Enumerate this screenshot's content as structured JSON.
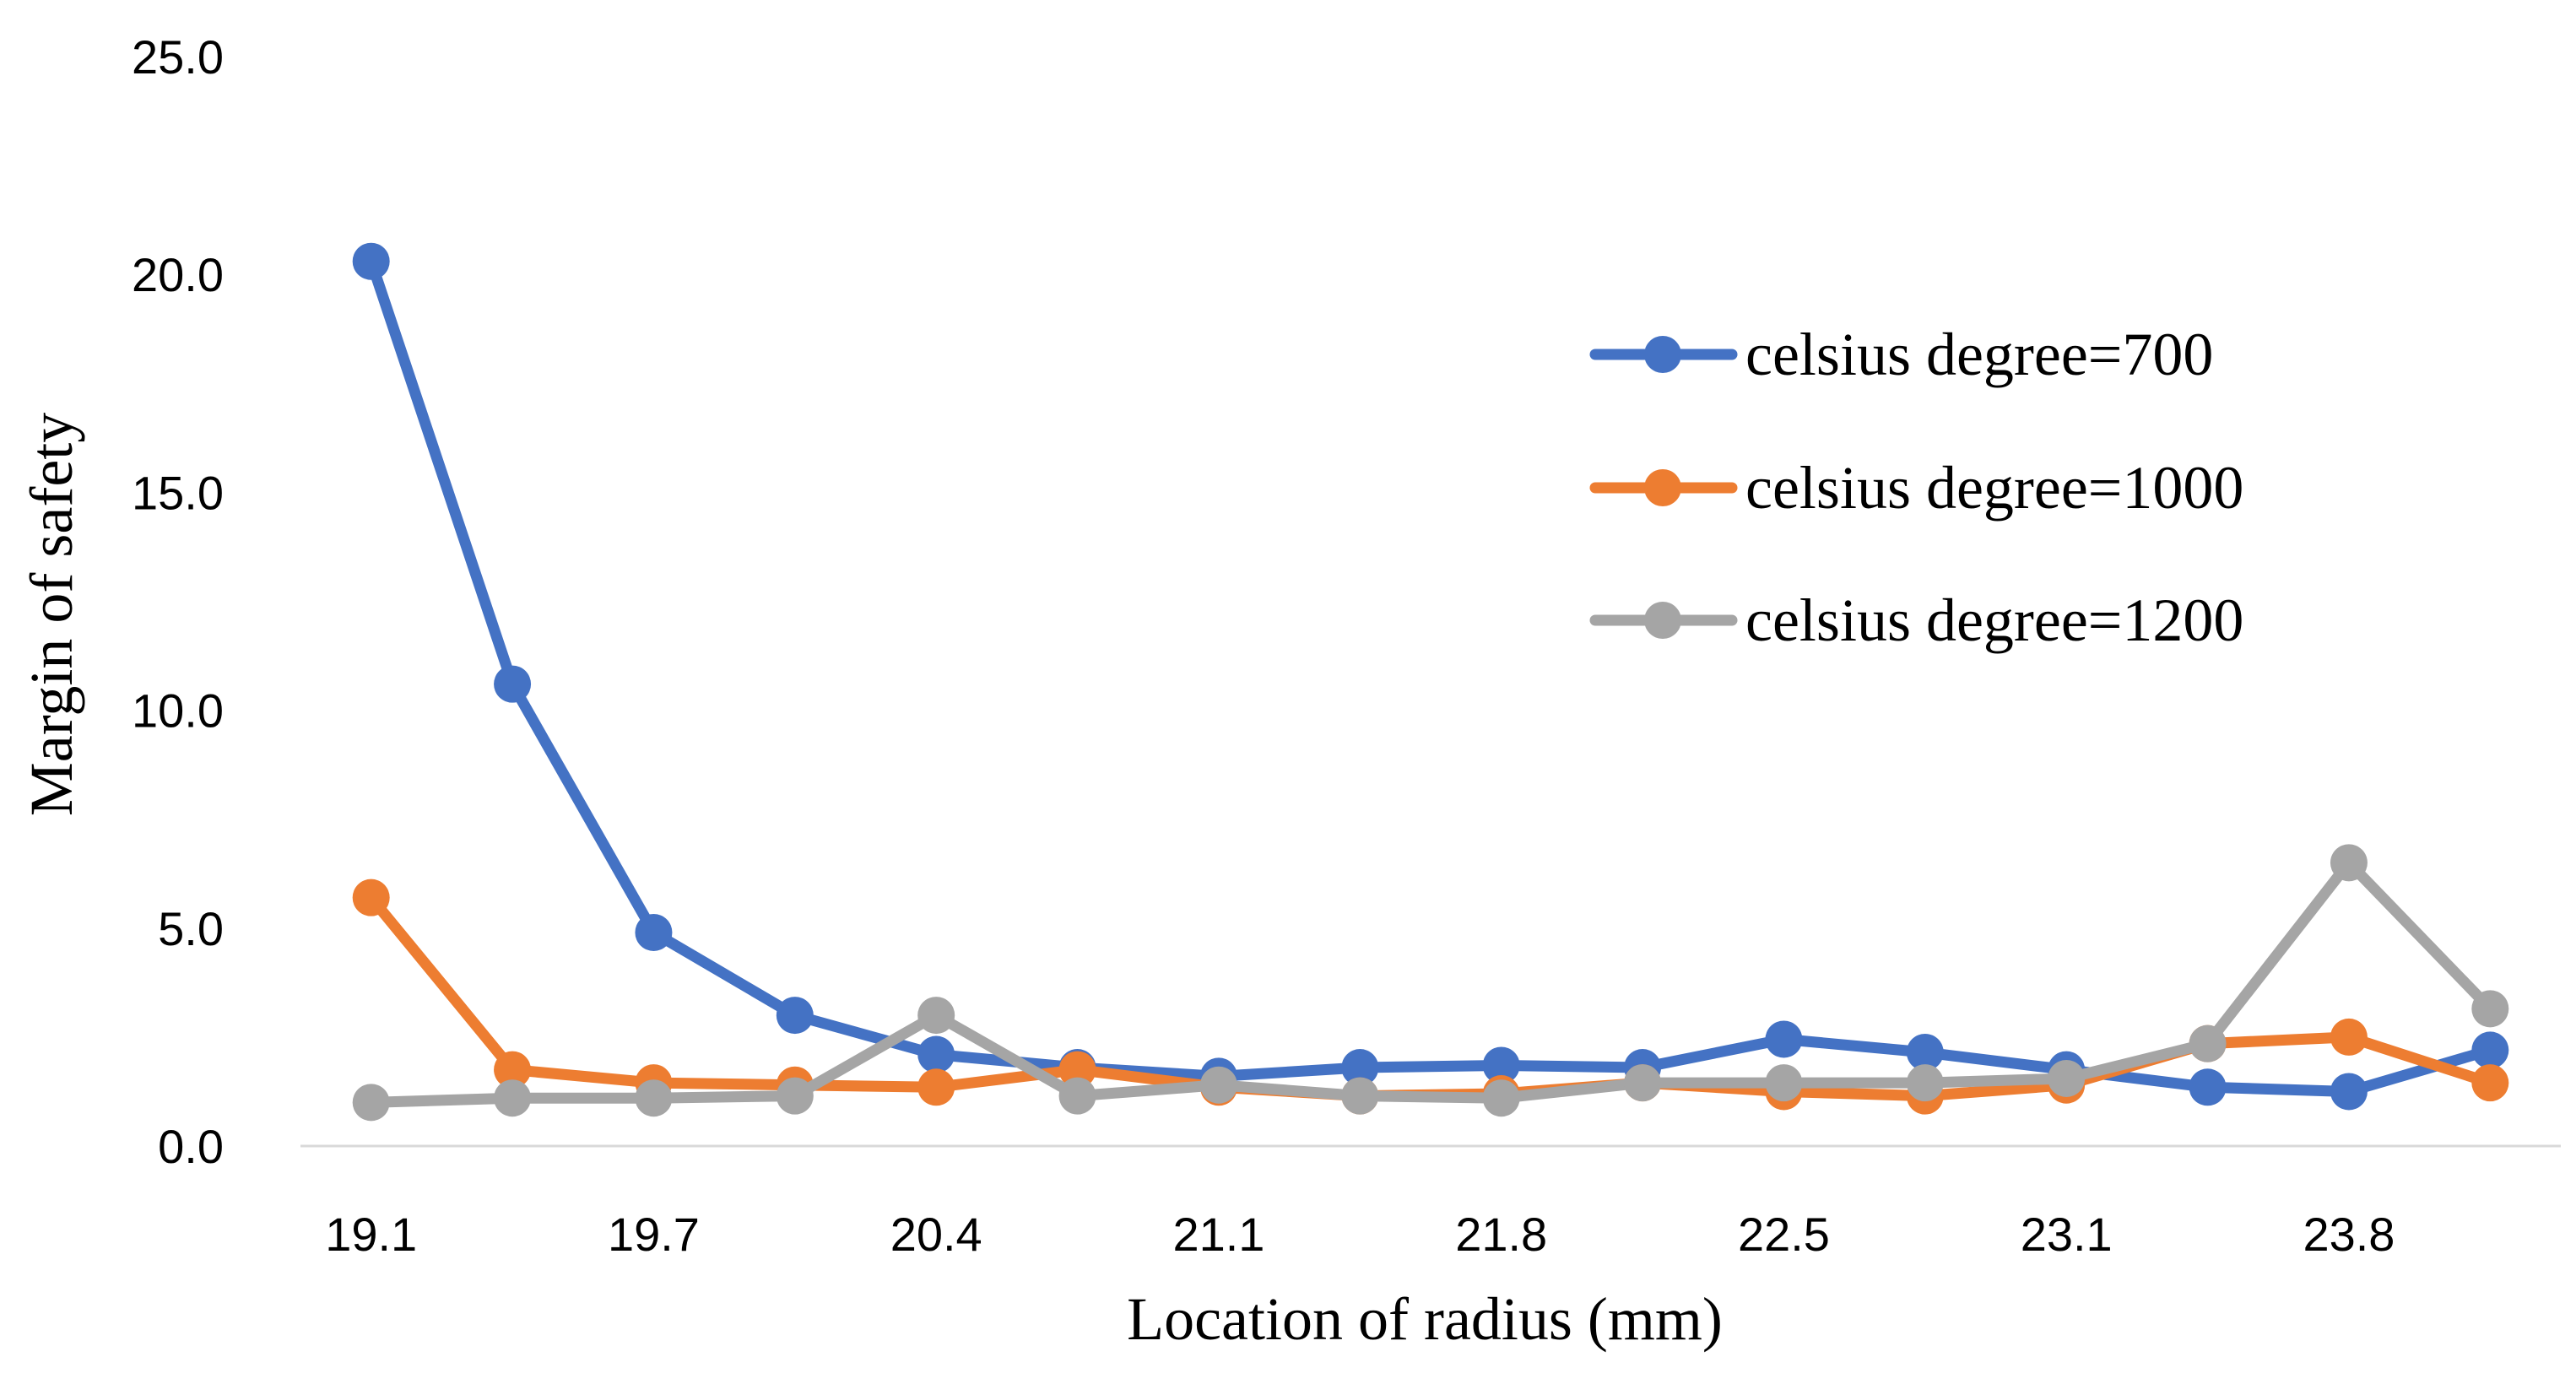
{
  "chart_data": {
    "type": "line",
    "title": "",
    "xlabel": "Location of radius (mm)",
    "ylabel": "Margin of safety",
    "ylim": [
      0,
      25
    ],
    "yticks": [
      "0.0",
      "5.0",
      "10.0",
      "15.0",
      "20.0",
      "25.0"
    ],
    "x_tick_labels": [
      "19.1",
      "19.7",
      "20.4",
      "21.1",
      "21.8",
      "22.5",
      "23.1",
      "23.8"
    ],
    "x_points": 16,
    "legend_position": "right",
    "series": [
      {
        "name": "celsius degree=700",
        "color": "#4472C4",
        "values": [
          20.3,
          10.6,
          4.9,
          3.0,
          2.1,
          1.8,
          1.6,
          1.8,
          1.85,
          1.8,
          2.45,
          2.15,
          1.75,
          1.35,
          1.25,
          2.2
        ]
      },
      {
        "name": "celsius degree=1000",
        "color": "#ED7D31",
        "values": [
          5.7,
          1.75,
          1.45,
          1.4,
          1.35,
          1.75,
          1.35,
          1.15,
          1.2,
          1.45,
          1.25,
          1.15,
          1.4,
          2.35,
          2.5,
          1.45
        ]
      },
      {
        "name": "celsius degree=1200",
        "color": "#A5A5A5",
        "values": [
          1.0,
          1.1,
          1.1,
          1.15,
          3.0,
          1.15,
          1.4,
          1.15,
          1.1,
          1.45,
          1.45,
          1.45,
          1.55,
          2.35,
          6.5,
          3.15
        ]
      }
    ]
  }
}
